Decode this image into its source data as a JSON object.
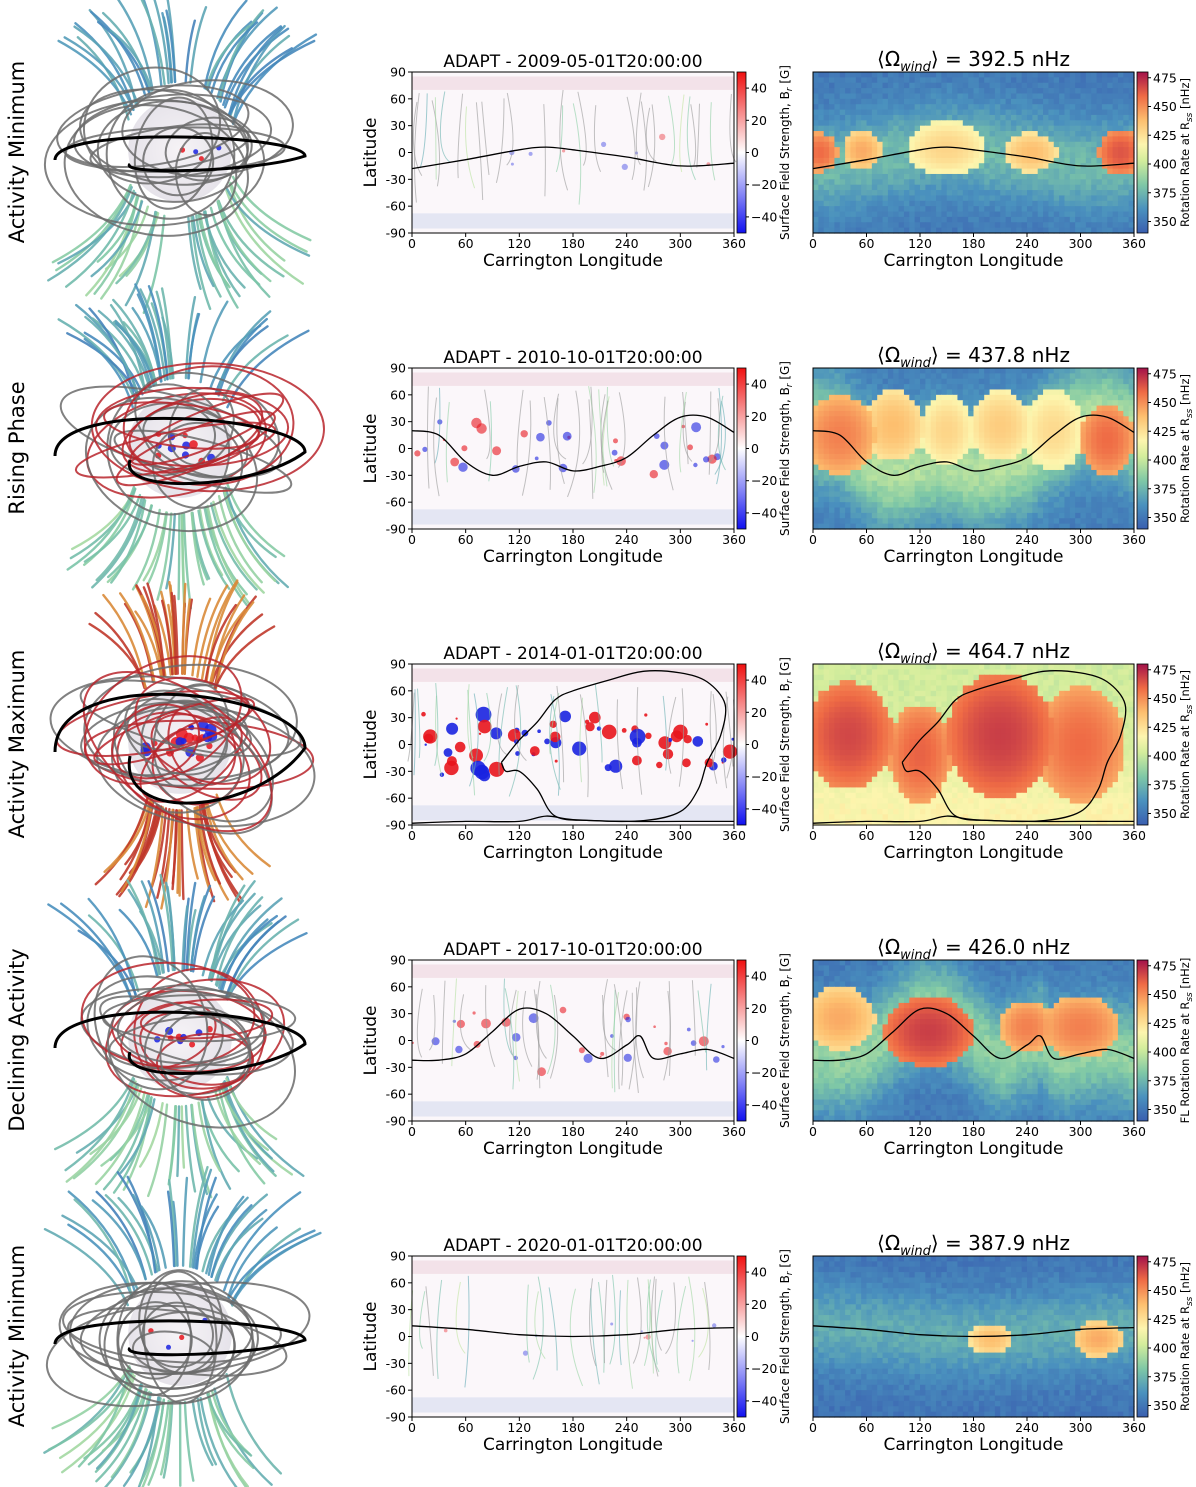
{
  "figure": {
    "colors": {
      "hcs": "#000000",
      "closed_loops": "#6b6b6b",
      "open_north": "#3b7fa8",
      "open_south": "#2f8a8e",
      "active_loops": "#b8242c",
      "br_pos": "#e8141c",
      "br_neg": "#1a22e0",
      "cmap_low": "#3a5fb0",
      "cmap_high": "#a3124a"
    },
    "shared": {
      "ylabel_map": "Latitude",
      "xlabel": "Carrington Longitude",
      "cb1_label": "Surface Field Strength, B",
      "cb1_label_sub": "r",
      "cb1_label_unit": " [G]",
      "cb2_label": "Rotation Rate at R",
      "cb2_label_sub": "ss",
      "cb2_label_unit": " [nHz]",
      "cb2_label_alt_prefix": "FL ",
      "omega_symbol": "⟨Ω",
      "omega_sub": "wind",
      "omega_close": "⟩ =  ",
      "omega_unit": " nHz"
    }
  },
  "chart_data": [
    {
      "row": 1,
      "phase": "Activity Minimum",
      "map_title": "ADAPT - 2009-05-01T20:00:00",
      "omega": "392.5",
      "cb2_prefix": false,
      "type": "heatmap",
      "xlabel": "Carrington Longitude",
      "ylabel": "Latitude",
      "xlim": [
        0,
        360
      ],
      "ylim": [
        -90,
        90
      ],
      "xticks": [
        0,
        60,
        120,
        180,
        240,
        300,
        360
      ],
      "yticks": [
        90,
        60,
        30,
        0,
        -30,
        -60,
        -90
      ],
      "cb1_ticks": [
        40,
        20,
        0,
        -20,
        -40
      ],
      "cb1_range": [
        -50,
        50
      ],
      "cb2_ticks": [
        475,
        450,
        425,
        400,
        375,
        350
      ],
      "cb2_range": [
        340,
        480
      ],
      "hcs_lon": [
        0,
        60,
        120,
        150,
        180,
        240,
        300,
        360
      ],
      "hcs_lat": [
        -18,
        -8,
        3,
        6,
        3,
        -5,
        -15,
        -12
      ],
      "wind_base": 375,
      "wind_pole": 350,
      "wind_band": 0.55,
      "fast_regions": [
        {
          "lon": 8,
          "lat": 0,
          "rlon": 20,
          "rlat": 22,
          "val": 460
        },
        {
          "lon": 55,
          "lat": 2,
          "rlon": 22,
          "rlat": 22,
          "val": 445
        },
        {
          "lon": 150,
          "lat": 5,
          "rlon": 45,
          "rlat": 30,
          "val": 432
        },
        {
          "lon": 245,
          "lat": 0,
          "rlon": 30,
          "rlat": 22,
          "val": 440
        },
        {
          "lon": 345,
          "lat": 0,
          "rlon": 25,
          "rlat": 25,
          "val": 465
        }
      ],
      "field_activity": 0.05
    },
    {
      "row": 2,
      "phase": "Rising Phase",
      "map_title": "ADAPT - 2010-10-01T20:00:00",
      "omega": "437.8",
      "cb2_prefix": false,
      "type": "heatmap",
      "xlabel": "Carrington Longitude",
      "ylabel": "Latitude",
      "xlim": [
        0,
        360
      ],
      "ylim": [
        -90,
        90
      ],
      "xticks": [
        0,
        60,
        120,
        180,
        240,
        300,
        360
      ],
      "yticks": [
        90,
        60,
        30,
        0,
        -30,
        -60,
        -90
      ],
      "cb1_ticks": [
        40,
        20,
        0,
        -20,
        -40
      ],
      "cb1_range": [
        -50,
        50
      ],
      "cb2_ticks": [
        475,
        450,
        425,
        400,
        375,
        350
      ],
      "cb2_range": [
        340,
        480
      ],
      "hcs_lon": [
        0,
        30,
        60,
        90,
        120,
        150,
        180,
        210,
        240,
        270,
        300,
        330,
        360
      ],
      "hcs_lat": [
        20,
        15,
        -15,
        -30,
        -20,
        -15,
        -25,
        -20,
        -10,
        15,
        35,
        35,
        18
      ],
      "wind_base": 392,
      "wind_pole": 352,
      "wind_band": 0.75,
      "fast_regions": [
        {
          "lon": 30,
          "lat": 15,
          "rlon": 40,
          "rlat": 45,
          "val": 455
        },
        {
          "lon": 90,
          "lat": 25,
          "rlon": 35,
          "rlat": 40,
          "val": 440
        },
        {
          "lon": 150,
          "lat": 20,
          "rlon": 30,
          "rlat": 40,
          "val": 432
        },
        {
          "lon": 210,
          "lat": 25,
          "rlon": 35,
          "rlat": 40,
          "val": 435
        },
        {
          "lon": 270,
          "lat": 20,
          "rlon": 35,
          "rlat": 45,
          "val": 430
        },
        {
          "lon": 330,
          "lat": 10,
          "rlon": 30,
          "rlat": 40,
          "val": 460
        }
      ],
      "field_activity": 0.45
    },
    {
      "row": 3,
      "phase": "Activity Maximum",
      "map_title": "ADAPT - 2014-01-01T20:00:00",
      "omega": "464.7",
      "cb2_prefix": false,
      "type": "heatmap",
      "xlabel": "Carrington Longitude",
      "ylabel": "Latitude",
      "xlim": [
        0,
        360
      ],
      "ylim": [
        -90,
        90
      ],
      "xticks": [
        0,
        60,
        120,
        180,
        240,
        300,
        360
      ],
      "yticks": [
        90,
        60,
        30,
        0,
        -30,
        -60,
        -90
      ],
      "cb1_ticks": [
        40,
        20,
        0,
        -20,
        -40
      ],
      "cb1_range": [
        -50,
        50
      ],
      "cb2_ticks": [
        475,
        450,
        425,
        400,
        375,
        350
      ],
      "cb2_range": [
        340,
        480
      ],
      "hcs_lon": [
        0,
        60,
        120,
        150,
        180,
        240,
        300,
        360
      ],
      "hcs_lat": [
        -88,
        -86,
        -86,
        -80,
        -84,
        -86,
        -86,
        -86
      ],
      "hcs2_lon": [
        100,
        120,
        140,
        160,
        180,
        220,
        260,
        300,
        330,
        350,
        345,
        330,
        320,
        300,
        260,
        200,
        160,
        140,
        120,
        105,
        100
      ],
      "hcs2_lat": [
        -20,
        5,
        25,
        50,
        60,
        72,
        82,
        80,
        70,
        45,
        10,
        -20,
        -50,
        -75,
        -85,
        -85,
        -80,
        -50,
        -30,
        -30,
        -20
      ],
      "wind_base": 420,
      "wind_pole": 400,
      "wind_band": 1.0,
      "fast_regions": [
        {
          "lon": 40,
          "lat": 10,
          "rlon": 50,
          "rlat": 60,
          "val": 468
        },
        {
          "lon": 120,
          "lat": -10,
          "rlon": 35,
          "rlat": 55,
          "val": 462
        },
        {
          "lon": 210,
          "lat": 10,
          "rlon": 60,
          "rlat": 70,
          "val": 470
        },
        {
          "lon": 300,
          "lat": 0,
          "rlon": 50,
          "rlat": 65,
          "val": 460
        }
      ],
      "field_activity": 1.0
    },
    {
      "row": 4,
      "phase": "Declining Activity",
      "map_title": "ADAPT - 2017-10-01T20:00:00",
      "omega": "426.0",
      "cb2_prefix": true,
      "type": "heatmap",
      "xlabel": "Carrington Longitude",
      "ylabel": "Latitude",
      "xlim": [
        0,
        360
      ],
      "ylim": [
        -90,
        90
      ],
      "xticks": [
        0,
        60,
        120,
        180,
        240,
        300,
        360
      ],
      "yticks": [
        90,
        60,
        30,
        0,
        -30,
        -60,
        -90
      ],
      "cb1_ticks": [
        40,
        20,
        0,
        -20,
        -40
      ],
      "cb1_range": [
        -50,
        50
      ],
      "cb2_ticks": [
        475,
        450,
        425,
        400,
        375,
        350
      ],
      "cb2_range": [
        340,
        480
      ],
      "hcs_lon": [
        0,
        30,
        60,
        90,
        120,
        150,
        180,
        210,
        240,
        255,
        270,
        300,
        330,
        360
      ],
      "hcs_lat": [
        -22,
        -22,
        -15,
        10,
        35,
        30,
        5,
        -20,
        -5,
        5,
        -20,
        -15,
        -10,
        -20
      ],
      "wind_base": 385,
      "wind_pole": 350,
      "wind_band": 0.7,
      "fast_regions": [
        {
          "lon": 30,
          "lat": 25,
          "rlon": 40,
          "rlat": 35,
          "val": 445
        },
        {
          "lon": 130,
          "lat": 10,
          "rlon": 50,
          "rlat": 40,
          "val": 470
        },
        {
          "lon": 240,
          "lat": 15,
          "rlon": 30,
          "rlat": 30,
          "val": 455
        },
        {
          "lon": 300,
          "lat": 15,
          "rlon": 45,
          "rlat": 35,
          "val": 455
        }
      ],
      "field_activity": 0.4
    },
    {
      "row": 5,
      "phase": "Activity Minimum",
      "map_title": "ADAPT - 2020-01-01T20:00:00",
      "omega": "387.9",
      "cb2_prefix": false,
      "type": "heatmap",
      "xlabel": "Carrington Longitude",
      "ylabel": "Latitude",
      "xlim": [
        0,
        360
      ],
      "ylim": [
        -90,
        90
      ],
      "xticks": [
        0,
        60,
        120,
        180,
        240,
        300,
        360
      ],
      "yticks": [
        90,
        60,
        30,
        0,
        -30,
        -60,
        -90
      ],
      "cb1_ticks": [
        40,
        20,
        0,
        -20,
        -40
      ],
      "cb1_range": [
        -50,
        50
      ],
      "cb2_ticks": [
        475,
        450,
        425,
        400,
        375,
        350
      ],
      "cb2_range": [
        340,
        480
      ],
      "hcs_lon": [
        0,
        60,
        120,
        180,
        240,
        300,
        360
      ],
      "hcs_lat": [
        12,
        8,
        2,
        0,
        2,
        8,
        10
      ],
      "wind_base": 370,
      "wind_pole": 348,
      "wind_band": 0.5,
      "fast_regions": [
        {
          "lon": 200,
          "lat": -3,
          "rlon": 25,
          "rlat": 18,
          "val": 440
        },
        {
          "lon": 320,
          "lat": -3,
          "rlon": 28,
          "rlat": 20,
          "val": 445
        }
      ],
      "field_activity": 0.05
    }
  ]
}
